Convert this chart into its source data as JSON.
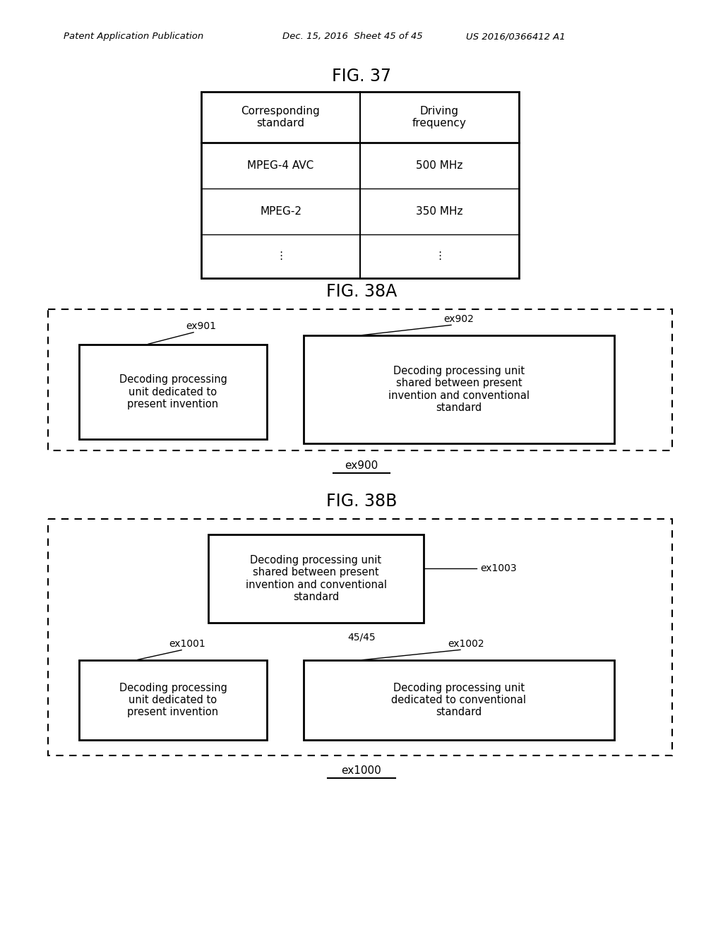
{
  "bg_color": "#ffffff",
  "header_text_left": "Patent Application Publication",
  "header_text_mid": "Dec. 15, 2016  Sheet 45 of 45",
  "header_text_right": "US 2016/0366412 A1",
  "fig37_title": "FIG. 37",
  "fig38a_title": "FIG. 38A",
  "fig38b_title": "FIG. 38B",
  "table_col1_header": "Corresponding\nstandard",
  "table_col2_header": "Driving\nfrequency",
  "table_rows": [
    [
      "MPEG-4 AVC",
      "500 MHz"
    ],
    [
      "MPEG-2",
      "350 MHz"
    ],
    [
      "⋮",
      "⋮"
    ]
  ],
  "fig38a_outer_label": "ex900",
  "fig38a_box1_label": "ex901",
  "fig38a_box1_text": "Decoding processing\nunit dedicated to\npresent invention",
  "fig38a_box2_label": "ex902",
  "fig38a_box2_text": "Decoding processing unit\nshared between present\ninvention and conventional\nstandard",
  "fig38b_outer_label": "ex1000",
  "fig38b_page_label": "45/45",
  "fig38b_box_top_label": "ex1003",
  "fig38b_box_top_text": "Decoding processing unit\nshared between present\ninvention and conventional\nstandard",
  "fig38b_box1_label": "ex1001",
  "fig38b_box1_text": "Decoding processing\nunit dedicated to\npresent invention",
  "fig38b_box2_label": "ex1002",
  "fig38b_box2_text": "Decoding processing unit\ndedicated to conventional\nstandard"
}
